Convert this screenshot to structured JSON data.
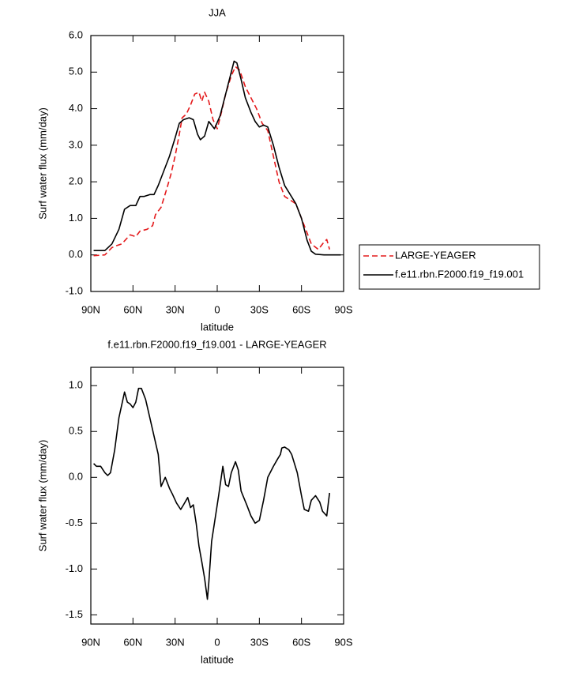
{
  "chart_data": [
    {
      "type": "line",
      "title": "JJA",
      "xlabel": "latitude",
      "ylabel": "Surf water flux (mm/day)",
      "xlim": [
        90,
        -90
      ],
      "ylim": [
        -1,
        6
      ],
      "xticks": [
        {
          "value": 90,
          "label": "90N"
        },
        {
          "value": 60,
          "label": "60N"
        },
        {
          "value": 30,
          "label": "30N"
        },
        0,
        {
          "value": -30,
          "label": "30S"
        },
        {
          "value": -60,
          "label": "60S"
        },
        {
          "value": -90,
          "label": "90S"
        }
      ],
      "yticks": [
        {
          "value": -1,
          "label": "-1.0"
        },
        {
          "value": 0,
          "label": "0.0"
        },
        {
          "value": 1,
          "label": "1.0"
        },
        {
          "value": 2,
          "label": "2.0"
        },
        {
          "value": 3,
          "label": "3.0"
        },
        {
          "value": 4,
          "label": "4.0"
        },
        {
          "value": 5,
          "label": "5.0"
        },
        {
          "value": 6,
          "label": "6.0"
        }
      ],
      "legend": "right",
      "series": [
        {
          "name": "LARGE-YEAGER",
          "color": "#e41a1c",
          "line_style": "dashed",
          "x": [
            88,
            80,
            75,
            72,
            68,
            62,
            58,
            55,
            50,
            46,
            44,
            40,
            36,
            33,
            30,
            27,
            25,
            22,
            19,
            16,
            13,
            11,
            9,
            6,
            3,
            0,
            -3,
            -6,
            -10,
            -13,
            -16,
            -20,
            -24,
            -28,
            -32,
            -36,
            -40,
            -44,
            -48,
            -52,
            -56,
            -60,
            -64,
            -67,
            -72,
            -76,
            -78,
            -80
          ],
          "values": [
            -0.02,
            0.0,
            0.2,
            0.25,
            0.3,
            0.55,
            0.5,
            0.65,
            0.7,
            0.8,
            1.1,
            1.3,
            1.8,
            2.2,
            2.7,
            3.3,
            3.75,
            3.85,
            4.1,
            4.4,
            4.45,
            4.2,
            4.45,
            4.2,
            3.7,
            3.45,
            3.9,
            4.4,
            4.9,
            5.15,
            5.05,
            4.6,
            4.3,
            4.0,
            3.6,
            3.4,
            2.7,
            2.0,
            1.6,
            1.5,
            1.4,
            1.0,
            0.6,
            0.3,
            0.15,
            0.35,
            0.42,
            0.15
          ]
        },
        {
          "name": "f.e11.rbn.F2000.f19_f19.001",
          "color": "#000000",
          "line_style": "solid",
          "x": [
            88,
            80,
            75,
            70,
            66,
            62,
            58,
            55,
            52,
            48,
            45,
            42,
            38,
            34,
            30,
            27,
            24,
            20,
            17,
            14,
            12,
            9,
            6,
            2,
            -2,
            -6,
            -10,
            -12,
            -14,
            -17,
            -20,
            -24,
            -27,
            -30,
            -33,
            -36,
            -40,
            -44,
            -48,
            -52,
            -56,
            -60,
            -64,
            -67,
            -70,
            -76,
            -88
          ],
          "values": [
            0.12,
            0.12,
            0.3,
            0.7,
            1.25,
            1.35,
            1.35,
            1.6,
            1.6,
            1.65,
            1.65,
            1.9,
            2.3,
            2.7,
            3.2,
            3.6,
            3.7,
            3.75,
            3.7,
            3.3,
            3.15,
            3.25,
            3.65,
            3.45,
            3.8,
            4.4,
            5.0,
            5.3,
            5.25,
            4.8,
            4.3,
            3.9,
            3.65,
            3.5,
            3.55,
            3.5,
            3.0,
            2.4,
            1.9,
            1.65,
            1.4,
            1.0,
            0.4,
            0.1,
            0.02,
            0.0,
            0.0
          ]
        }
      ]
    },
    {
      "type": "line",
      "title": "f.e11.rbn.F2000.f19_f19.001 - LARGE-YEAGER",
      "xlabel": "latitude",
      "ylabel": "Surf water flux (mm/day)",
      "xlim": [
        90,
        -90
      ],
      "ylim": [
        -1.6,
        1.2
      ],
      "xticks": [
        {
          "value": 90,
          "label": "90N"
        },
        {
          "value": 60,
          "label": "60N"
        },
        {
          "value": 30,
          "label": "30N"
        },
        0,
        {
          "value": -30,
          "label": "30S"
        },
        {
          "value": -60,
          "label": "60S"
        },
        {
          "value": -90,
          "label": "90S"
        }
      ],
      "yticks": [
        {
          "value": -1.5,
          "label": "-1.5"
        },
        {
          "value": -1,
          "label": "-1.0"
        },
        -0.5,
        {
          "value": 0,
          "label": "0.0"
        },
        0.5,
        {
          "value": 1,
          "label": "1.0"
        }
      ],
      "color": "#000000",
      "x": [
        88,
        86,
        83,
        80,
        78,
        76,
        73,
        70,
        66,
        64,
        62,
        60,
        58,
        56,
        54,
        51,
        48,
        45,
        42,
        40,
        37,
        34,
        32,
        29,
        26,
        24,
        21,
        19,
        17,
        15,
        13,
        11,
        9,
        7,
        6,
        4,
        1,
        -1,
        -4,
        -6,
        -8,
        -10,
        -13,
        -15,
        -17,
        -21,
        -24,
        -27,
        -30,
        -33,
        -36,
        -40,
        -43,
        -45,
        -46,
        -48,
        -51,
        -53,
        -57,
        -60,
        -62,
        -65,
        -67,
        -70,
        -73,
        -75,
        -78,
        -80
      ],
      "values": [
        0.15,
        0.12,
        0.12,
        0.05,
        0.02,
        0.05,
        0.3,
        0.65,
        0.93,
        0.82,
        0.8,
        0.76,
        0.82,
        0.97,
        0.97,
        0.85,
        0.65,
        0.45,
        0.25,
        -0.1,
        0.0,
        -0.12,
        -0.18,
        -0.28,
        -0.35,
        -0.3,
        -0.22,
        -0.33,
        -0.3,
        -0.5,
        -0.75,
        -0.92,
        -1.1,
        -1.33,
        -1.15,
        -0.7,
        -0.4,
        -0.2,
        0.12,
        -0.08,
        -0.1,
        0.05,
        0.17,
        0.08,
        -0.15,
        -0.3,
        -0.42,
        -0.5,
        -0.47,
        -0.25,
        0.0,
        0.12,
        0.2,
        0.25,
        0.32,
        0.33,
        0.3,
        0.25,
        0.05,
        -0.2,
        -0.35,
        -0.37,
        -0.25,
        -0.2,
        -0.27,
        -0.37,
        -0.42,
        -0.17
      ]
    }
  ]
}
